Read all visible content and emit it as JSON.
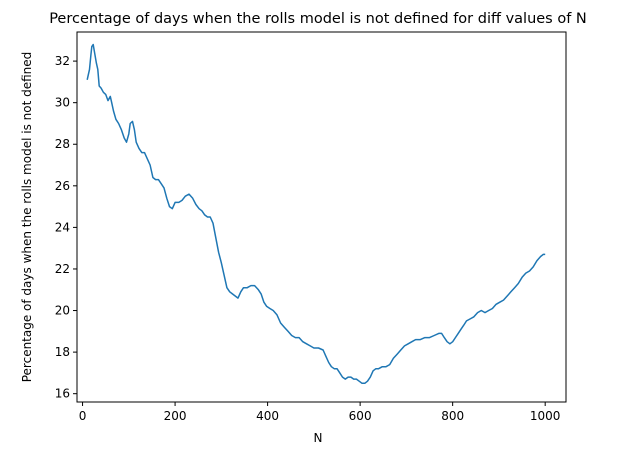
{
  "chart_data": {
    "type": "line",
    "title": "Percentage of days when the rolls model is not defined for diff values of N",
    "xlabel": "N",
    "ylabel": "Percentage of days when the rolls model is not defined",
    "xlim": [
      -12,
      1045
    ],
    "ylim": [
      15.6,
      33.4
    ],
    "xticks": [
      0,
      200,
      400,
      600,
      800,
      1000
    ],
    "yticks": [
      16,
      18,
      20,
      22,
      24,
      26,
      28,
      30,
      32
    ],
    "grid": false,
    "legend": "none",
    "series": [
      {
        "color": "#1f77b4",
        "points": [
          [
            10,
            31.1
          ],
          [
            12,
            31.3
          ],
          [
            15,
            31.6
          ],
          [
            18,
            32.3
          ],
          [
            20,
            32.7
          ],
          [
            23,
            32.8
          ],
          [
            26,
            32.4
          ],
          [
            30,
            31.9
          ],
          [
            33,
            31.6
          ],
          [
            36,
            30.8
          ],
          [
            40,
            30.7
          ],
          [
            45,
            30.5
          ],
          [
            50,
            30.4
          ],
          [
            55,
            30.1
          ],
          [
            60,
            30.3
          ],
          [
            63,
            30.0
          ],
          [
            67,
            29.6
          ],
          [
            72,
            29.2
          ],
          [
            78,
            29.0
          ],
          [
            84,
            28.7
          ],
          [
            90,
            28.3
          ],
          [
            95,
            28.1
          ],
          [
            100,
            28.5
          ],
          [
            103,
            29.0
          ],
          [
            108,
            29.1
          ],
          [
            112,
            28.7
          ],
          [
            116,
            28.1
          ],
          [
            122,
            27.8
          ],
          [
            128,
            27.6
          ],
          [
            134,
            27.6
          ],
          [
            140,
            27.3
          ],
          [
            146,
            27.0
          ],
          [
            152,
            26.4
          ],
          [
            158,
            26.3
          ],
          [
            164,
            26.3
          ],
          [
            170,
            26.1
          ],
          [
            176,
            25.9
          ],
          [
            182,
            25.4
          ],
          [
            188,
            25.0
          ],
          [
            194,
            24.9
          ],
          [
            200,
            25.2
          ],
          [
            208,
            25.2
          ],
          [
            215,
            25.3
          ],
          [
            222,
            25.5
          ],
          [
            230,
            25.6
          ],
          [
            238,
            25.4
          ],
          [
            245,
            25.1
          ],
          [
            252,
            24.9
          ],
          [
            258,
            24.8
          ],
          [
            264,
            24.6
          ],
          [
            270,
            24.5
          ],
          [
            276,
            24.5
          ],
          [
            282,
            24.2
          ],
          [
            288,
            23.5
          ],
          [
            294,
            22.8
          ],
          [
            300,
            22.3
          ],
          [
            306,
            21.7
          ],
          [
            312,
            21.1
          ],
          [
            318,
            20.9
          ],
          [
            324,
            20.8
          ],
          [
            330,
            20.7
          ],
          [
            336,
            20.6
          ],
          [
            342,
            20.9
          ],
          [
            348,
            21.1
          ],
          [
            356,
            21.1
          ],
          [
            364,
            21.2
          ],
          [
            372,
            21.2
          ],
          [
            380,
            21.0
          ],
          [
            386,
            20.8
          ],
          [
            392,
            20.4
          ],
          [
            398,
            20.2
          ],
          [
            405,
            20.1
          ],
          [
            412,
            20.0
          ],
          [
            420,
            19.8
          ],
          [
            428,
            19.4
          ],
          [
            436,
            19.2
          ],
          [
            444,
            19.0
          ],
          [
            452,
            18.8
          ],
          [
            460,
            18.7
          ],
          [
            468,
            18.7
          ],
          [
            476,
            18.5
          ],
          [
            484,
            18.4
          ],
          [
            492,
            18.3
          ],
          [
            500,
            18.2
          ],
          [
            510,
            18.2
          ],
          [
            520,
            18.1
          ],
          [
            526,
            17.8
          ],
          [
            532,
            17.5
          ],
          [
            538,
            17.3
          ],
          [
            544,
            17.2
          ],
          [
            550,
            17.2
          ],
          [
            556,
            17.0
          ],
          [
            562,
            16.8
          ],
          [
            568,
            16.7
          ],
          [
            574,
            16.8
          ],
          [
            580,
            16.8
          ],
          [
            586,
            16.7
          ],
          [
            592,
            16.7
          ],
          [
            598,
            16.6
          ],
          [
            604,
            16.5
          ],
          [
            610,
            16.5
          ],
          [
            616,
            16.6
          ],
          [
            622,
            16.8
          ],
          [
            628,
            17.1
          ],
          [
            634,
            17.2
          ],
          [
            640,
            17.2
          ],
          [
            648,
            17.3
          ],
          [
            656,
            17.3
          ],
          [
            664,
            17.4
          ],
          [
            672,
            17.7
          ],
          [
            680,
            17.9
          ],
          [
            688,
            18.1
          ],
          [
            696,
            18.3
          ],
          [
            704,
            18.4
          ],
          [
            712,
            18.5
          ],
          [
            720,
            18.6
          ],
          [
            730,
            18.6
          ],
          [
            740,
            18.7
          ],
          [
            750,
            18.7
          ],
          [
            760,
            18.8
          ],
          [
            770,
            18.9
          ],
          [
            776,
            18.9
          ],
          [
            782,
            18.7
          ],
          [
            788,
            18.5
          ],
          [
            794,
            18.4
          ],
          [
            800,
            18.5
          ],
          [
            806,
            18.7
          ],
          [
            812,
            18.9
          ],
          [
            818,
            19.1
          ],
          [
            824,
            19.3
          ],
          [
            830,
            19.5
          ],
          [
            838,
            19.6
          ],
          [
            846,
            19.7
          ],
          [
            854,
            19.9
          ],
          [
            862,
            20.0
          ],
          [
            870,
            19.9
          ],
          [
            878,
            20.0
          ],
          [
            886,
            20.1
          ],
          [
            894,
            20.3
          ],
          [
            902,
            20.4
          ],
          [
            910,
            20.5
          ],
          [
            918,
            20.7
          ],
          [
            926,
            20.9
          ],
          [
            934,
            21.1
          ],
          [
            942,
            21.3
          ],
          [
            950,
            21.6
          ],
          [
            958,
            21.8
          ],
          [
            966,
            21.9
          ],
          [
            974,
            22.1
          ],
          [
            982,
            22.4
          ],
          [
            990,
            22.6
          ],
          [
            996,
            22.7
          ],
          [
            1000,
            22.7
          ]
        ]
      }
    ]
  }
}
